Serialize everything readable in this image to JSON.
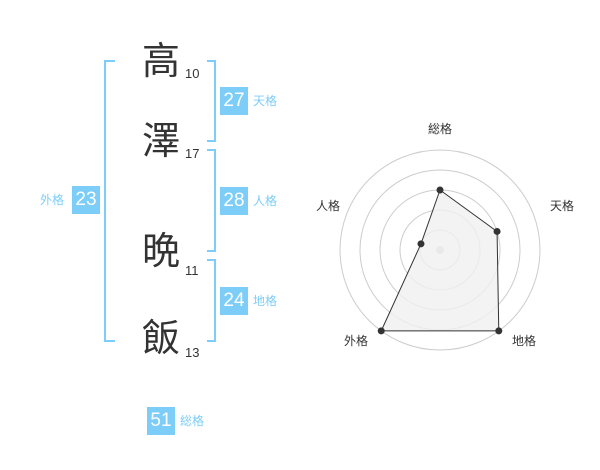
{
  "name": {
    "chars": [
      {
        "char": "高",
        "strokes": "10"
      },
      {
        "char": "澤",
        "strokes": "17"
      },
      {
        "char": "晩",
        "strokes": "11"
      },
      {
        "char": "飯",
        "strokes": "13"
      }
    ]
  },
  "kaku": {
    "tenkaku": {
      "label": "天格",
      "value": "27"
    },
    "jinkaku": {
      "label": "人格",
      "value": "28"
    },
    "chikaku": {
      "label": "地格",
      "value": "24"
    },
    "gaikaku": {
      "label": "外格",
      "value": "23"
    },
    "soukaku": {
      "label": "総格",
      "value": "51"
    }
  },
  "colors": {
    "accent": "#7dcdf9",
    "text": "#333333",
    "radar_fill": "#f0f0f0"
  },
  "chart_data": {
    "type": "radar",
    "axes": [
      "総格",
      "天格",
      "地格",
      "外格",
      "人格"
    ],
    "values": [
      3,
      3,
      5,
      5,
      1
    ],
    "range": [
      0,
      5
    ],
    "rings": 5
  }
}
